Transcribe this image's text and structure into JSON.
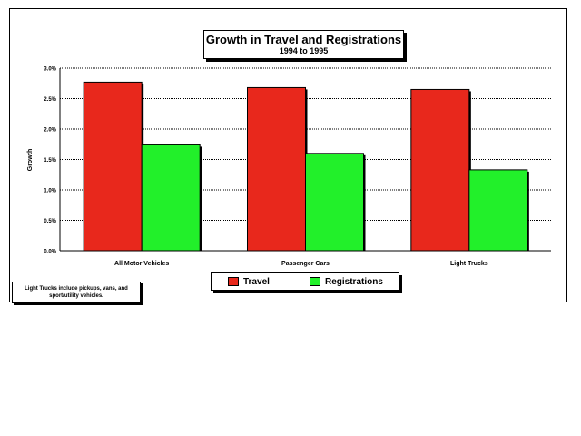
{
  "chart_data": {
    "type": "bar",
    "title": "Growth in Travel and Registrations",
    "subtitle": "1994 to 1995",
    "xlabel": "",
    "ylabel": "Growth",
    "categories": [
      "All Motor Vehicles",
      "Passenger Cars",
      "Light Trucks"
    ],
    "series": [
      {
        "name": "Travel",
        "values": [
          2.77,
          2.68,
          2.65
        ],
        "color": "#e8281c"
      },
      {
        "name": "Registrations",
        "values": [
          1.74,
          1.6,
          1.33
        ],
        "color": "#22f02a"
      }
    ],
    "ylim": [
      0,
      3.0
    ],
    "yticks": [
      "0.0%",
      "0.5%",
      "1.0%",
      "1.5%",
      "2.0%",
      "2.5%",
      "3.0%"
    ],
    "grid": true,
    "legend_position": "bottom",
    "note": "Light Trucks include pickups, vans, and sport/utility vehicles."
  }
}
